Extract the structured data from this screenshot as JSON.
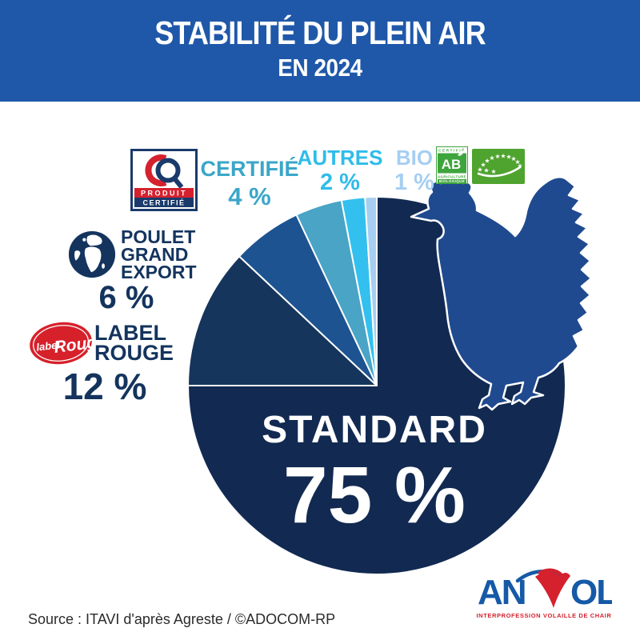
{
  "header": {
    "title": "STABILITÉ DU PLEIN AIR",
    "subtitle": "EN 2024"
  },
  "chart_data": {
    "type": "pie",
    "title": "Stabilité du plein air en 2024",
    "unit": "%",
    "start_angle_deg": 0,
    "direction": "clockwise",
    "slices": [
      {
        "label": "STANDARD",
        "value": 75,
        "color": "#122A52"
      },
      {
        "label": "LABEL ROUGE",
        "value": 12,
        "color": "#16355C"
      },
      {
        "label": "POULET GRAND EXPORT",
        "value": 6,
        "color": "#1D5391"
      },
      {
        "label": "CERTIFIÉ",
        "value": 4,
        "color": "#49A4C6"
      },
      {
        "label": "AUTRES",
        "value": 2,
        "color": "#33C0EF"
      },
      {
        "label": "BIO",
        "value": 1,
        "color": "#A6CEF2"
      }
    ]
  },
  "labels": {
    "standard": {
      "name": "STANDARD",
      "value": "75 %"
    },
    "label_rouge": {
      "line1": "LABEL",
      "line2": "ROUGE",
      "value": "12 %"
    },
    "poulet": {
      "line1": "POULET",
      "line2": "GRAND",
      "line3": "EXPORT",
      "value": "6 %"
    },
    "certifie": {
      "name": "CERTIFIÉ",
      "value": "4 %"
    },
    "autres": {
      "name": "AUTRES",
      "value": "2 %"
    },
    "bio": {
      "name": "BIO",
      "value": "1 %"
    }
  },
  "logos": {
    "produit_certifie": {
      "band1": "PRODUIT",
      "band2": "CERTIFIÉ"
    },
    "ab": {
      "top": "CERTIFIÉ",
      "mark": "AB",
      "line1": "AGRICULTURE",
      "line2": "BIOLOGIQUE"
    },
    "label_rouge": {
      "word1": "label",
      "word2": "Rouge"
    },
    "anvol": {
      "left": "AN",
      "right": "OL",
      "tagline": "INTERPROFESSION VOLAILLE DE CHAIR"
    }
  },
  "footer": {
    "source": "Source : ITAVI d'après Agreste / ©ADOCOM-RP"
  },
  "palette": {
    "header_bg": "#1F58A9",
    "navy": "#14345E",
    "teal": "#3BA6C9",
    "cyan": "#2FBCEA",
    "pale_blue": "#A6CEF2",
    "chicken_blue": "#1F4A8F",
    "red": "#D6212B",
    "anvol_blue": "#1659A7",
    "anvol_red": "#D5212E",
    "ab_green": "#3EA43C",
    "eu_green": "#4FA32F",
    "source_color": "#2B2B2B"
  }
}
